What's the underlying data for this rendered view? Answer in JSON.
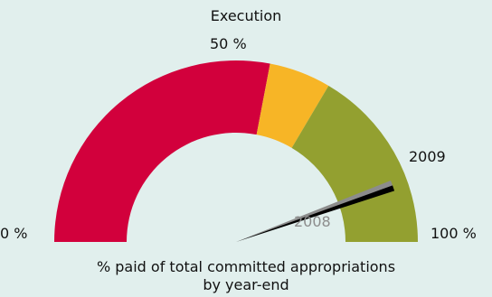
{
  "chart_data": {
    "type": "gauge",
    "title": "Execution",
    "scale_min_label": "0 %",
    "scale_mid_label": "50 %",
    "scale_max_label": "100 %",
    "caption": [
      "% paid of total committed appropriations",
      "by year-end"
    ],
    "bands": [
      {
        "from": 0,
        "to": 56,
        "color": "#d2003c"
      },
      {
        "from": 56,
        "to": 67,
        "color": "#f7b526"
      },
      {
        "from": 67,
        "to": 100,
        "color": "#93a030"
      }
    ],
    "needles": [
      {
        "label": "2008",
        "value": 88.5,
        "color": "#8c8c8c"
      },
      {
        "label": "2009",
        "value": 89.5,
        "color": "#000000"
      }
    ]
  }
}
